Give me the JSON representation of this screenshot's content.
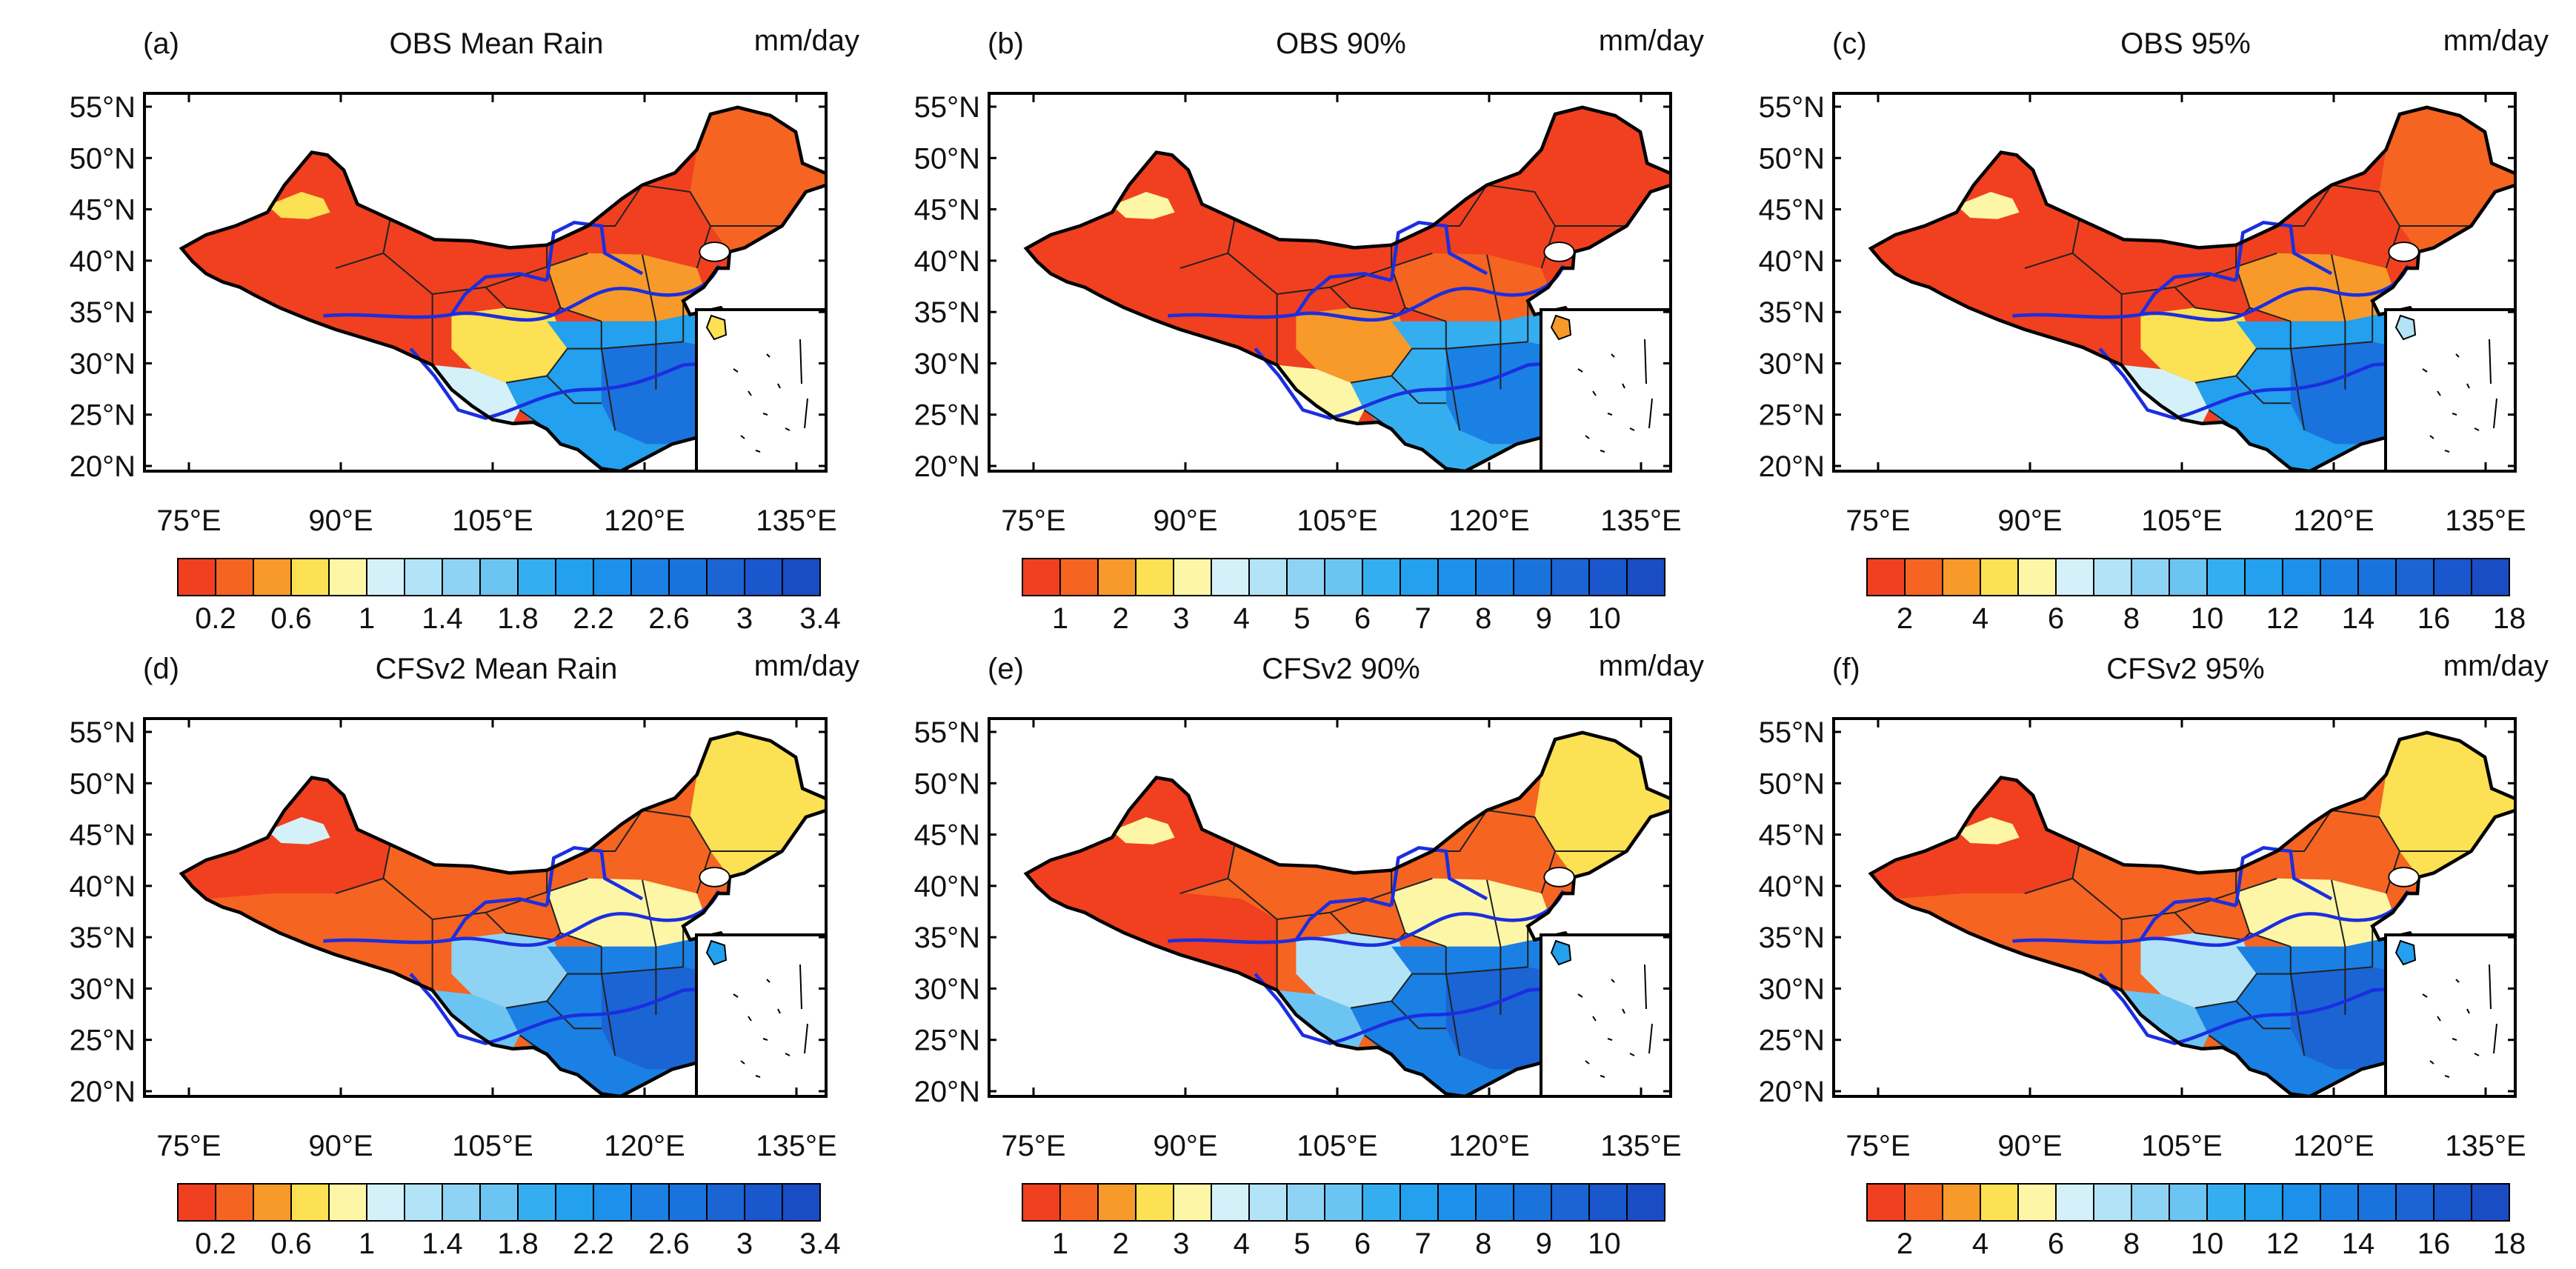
{
  "figure": {
    "lat_labels": [
      "55°N",
      "50°N",
      "45°N",
      "40°N",
      "35°N",
      "30°N",
      "25°N",
      "20°N"
    ],
    "lon_labels": [
      "75°E",
      "90°E",
      "105°E",
      "120°E",
      "135°E"
    ],
    "unit": "mm/day",
    "colors": [
      "#f0401f",
      "#f56420",
      "#f79a2a",
      "#fbe153",
      "#fcf6a6",
      "#d4f1f9",
      "#b3e3f6",
      "#8fd3f4",
      "#6cc4f2",
      "#35aef0",
      "#23a0ee",
      "#1c90ea",
      "#1a80e4",
      "#1a72dc",
      "#1a64d4",
      "#1a56cc",
      "#1a4cc4"
    ],
    "river_color": "#1b2ee0"
  },
  "panels": [
    {
      "id": "a",
      "tag": "(a)",
      "title": "OBS Mean Rain",
      "unit": "mm/day",
      "colorbar_ticks": [
        "0.2",
        "0.6",
        "1",
        "1.4",
        "1.8",
        "2.2",
        "2.6",
        "3",
        "3.4"
      ],
      "tick_offset": 1,
      "regions": [
        {
          "name": "north-china",
          "class": 0
        },
        {
          "name": "northwest-xinjiang",
          "class": 0
        },
        {
          "name": "north-xinjiang-hills",
          "class": 3
        },
        {
          "name": "tibet-plateau",
          "class": 0
        },
        {
          "name": "northeast",
          "class": 1
        },
        {
          "name": "yellow-river-plain",
          "class": 2
        },
        {
          "name": "sichuan-basin",
          "class": 3
        },
        {
          "name": "southwest-yunnan",
          "class": 5
        },
        {
          "name": "yangtze-south",
          "class": 10
        },
        {
          "name": "southeast-coast",
          "class": 13
        },
        {
          "name": "hainan",
          "class": 3
        },
        {
          "name": "taiwan",
          "class": 14
        }
      ]
    },
    {
      "id": "b",
      "tag": "(b)",
      "title": "OBS 90%",
      "unit": "mm/day",
      "colorbar_ticks": [
        "1",
        "2",
        "3",
        "4",
        "5",
        "6",
        "7",
        "8",
        "9",
        "10"
      ],
      "tick_offset": 0,
      "regions": [
        {
          "name": "north-china",
          "class": 0
        },
        {
          "name": "northwest-xinjiang",
          "class": 0
        },
        {
          "name": "north-xinjiang-hills",
          "class": 4
        },
        {
          "name": "tibet-plateau",
          "class": 0
        },
        {
          "name": "northeast",
          "class": 0
        },
        {
          "name": "yellow-river-plain",
          "class": 1
        },
        {
          "name": "sichuan-basin",
          "class": 2
        },
        {
          "name": "southwest-yunnan",
          "class": 4
        },
        {
          "name": "yangtze-south",
          "class": 9
        },
        {
          "name": "southeast-coast",
          "class": 12
        },
        {
          "name": "hainan",
          "class": 2
        },
        {
          "name": "taiwan",
          "class": 14
        }
      ]
    },
    {
      "id": "c",
      "tag": "(c)",
      "title": "OBS 95%",
      "unit": "mm/day",
      "colorbar_ticks": [
        "2",
        "4",
        "6",
        "8",
        "10",
        "12",
        "14",
        "16",
        "18"
      ],
      "tick_offset": 1,
      "regions": [
        {
          "name": "north-china",
          "class": 0
        },
        {
          "name": "northwest-xinjiang",
          "class": 0
        },
        {
          "name": "north-xinjiang-hills",
          "class": 4
        },
        {
          "name": "tibet-plateau",
          "class": 0
        },
        {
          "name": "northeast",
          "class": 1
        },
        {
          "name": "yellow-river-plain",
          "class": 2
        },
        {
          "name": "sichuan-basin",
          "class": 3
        },
        {
          "name": "southwest-yunnan",
          "class": 5
        },
        {
          "name": "yangtze-south",
          "class": 10
        },
        {
          "name": "southeast-coast",
          "class": 13
        },
        {
          "name": "hainan",
          "class": 6
        },
        {
          "name": "taiwan",
          "class": 14
        }
      ]
    },
    {
      "id": "d",
      "tag": "(d)",
      "title": "CFSv2 Mean Rain",
      "unit": "mm/day",
      "colorbar_ticks": [
        "0.2",
        "0.6",
        "1",
        "1.4",
        "1.8",
        "2.2",
        "2.6",
        "3",
        "3.4"
      ],
      "tick_offset": 1,
      "regions": [
        {
          "name": "north-china",
          "class": 1
        },
        {
          "name": "northwest-xinjiang",
          "class": 0
        },
        {
          "name": "north-xinjiang-hills",
          "class": 5
        },
        {
          "name": "tibet-plateau",
          "class": 1
        },
        {
          "name": "northeast",
          "class": 3
        },
        {
          "name": "yellow-river-plain",
          "class": 4
        },
        {
          "name": "sichuan-basin",
          "class": 7
        },
        {
          "name": "southwest-yunnan",
          "class": 8
        },
        {
          "name": "yangtze-south",
          "class": 12
        },
        {
          "name": "southeast-coast",
          "class": 14
        },
        {
          "name": "hainan",
          "class": 10
        },
        {
          "name": "taiwan",
          "class": 13
        }
      ]
    },
    {
      "id": "e",
      "tag": "(e)",
      "title": "CFSv2 90%",
      "unit": "mm/day",
      "colorbar_ticks": [
        "1",
        "2",
        "3",
        "4",
        "5",
        "6",
        "7",
        "8",
        "9",
        "10"
      ],
      "tick_offset": 0,
      "regions": [
        {
          "name": "north-china",
          "class": 1
        },
        {
          "name": "northwest-xinjiang",
          "class": 0
        },
        {
          "name": "north-xinjiang-hills",
          "class": 4
        },
        {
          "name": "tibet-plateau",
          "class": 0
        },
        {
          "name": "northeast",
          "class": 3
        },
        {
          "name": "yellow-river-plain",
          "class": 4
        },
        {
          "name": "sichuan-basin",
          "class": 6
        },
        {
          "name": "southwest-yunnan",
          "class": 8
        },
        {
          "name": "yangtze-south",
          "class": 12
        },
        {
          "name": "southeast-coast",
          "class": 14
        },
        {
          "name": "hainan",
          "class": 10
        },
        {
          "name": "taiwan",
          "class": 13
        }
      ]
    },
    {
      "id": "f",
      "tag": "(f)",
      "title": "CFSv2 95%",
      "unit": "mm/day",
      "colorbar_ticks": [
        "2",
        "4",
        "6",
        "8",
        "10",
        "12",
        "14",
        "16",
        "18"
      ],
      "tick_offset": 1,
      "regions": [
        {
          "name": "north-china",
          "class": 1
        },
        {
          "name": "northwest-xinjiang",
          "class": 0
        },
        {
          "name": "north-xinjiang-hills",
          "class": 4
        },
        {
          "name": "tibet-plateau",
          "class": 1
        },
        {
          "name": "northeast",
          "class": 3
        },
        {
          "name": "yellow-river-plain",
          "class": 4
        },
        {
          "name": "sichuan-basin",
          "class": 6
        },
        {
          "name": "southwest-yunnan",
          "class": 8
        },
        {
          "name": "yangtze-south",
          "class": 12
        },
        {
          "name": "southeast-coast",
          "class": 14
        },
        {
          "name": "hainan",
          "class": 10
        },
        {
          "name": "taiwan",
          "class": 13
        }
      ]
    }
  ]
}
